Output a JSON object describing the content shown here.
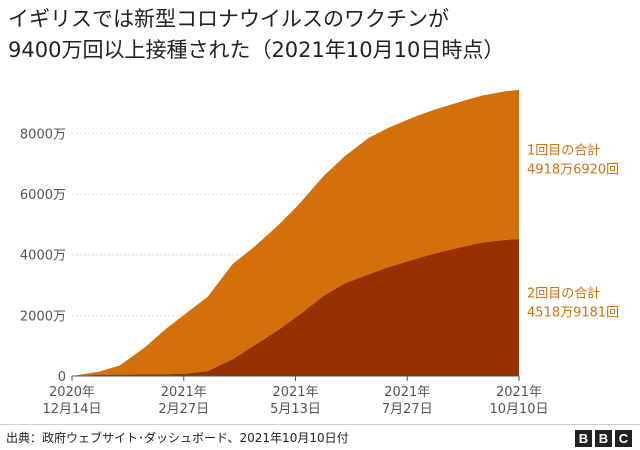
{
  "title_line1": "イギリスでは新型コロナウイルスのワクチンが",
  "title_line2": "9400万回以上接種された（2021年10月10日時点）",
  "source": "出典：政府ウェブサイト･ダッシュボード、2021年10月10日付",
  "logo": [
    "B",
    "B",
    "C"
  ],
  "colors": {
    "first_dose": "#d4700b",
    "second_dose": "#993000",
    "first_label": "#d4700b",
    "second_label": "#d4700b"
  },
  "chart_data": {
    "type": "area",
    "stacked": true,
    "xlabel": "",
    "ylabel": "",
    "x_ticks": [
      {
        "line1": "2020年",
        "line2": "12月14日",
        "date": "2020-12-14"
      },
      {
        "line1": "2021年",
        "line2": "2月27日",
        "date": "2021-02-27"
      },
      {
        "line1": "2021年",
        "line2": "5月13日",
        "date": "2021-05-13"
      },
      {
        "line1": "2021年",
        "line2": "7月27日",
        "date": "2021-07-27"
      },
      {
        "line1": "2021年",
        "line2": "10月10日",
        "date": "2021-10-10"
      }
    ],
    "y_ticks": [
      {
        "value": 0,
        "label": "0"
      },
      {
        "value": 20000000,
        "label": "2000万"
      },
      {
        "value": 40000000,
        "label": "4000万"
      },
      {
        "value": 60000000,
        "label": "6000万"
      },
      {
        "value": 80000000,
        "label": "8000万"
      }
    ],
    "ylim": [
      0,
      95000000
    ],
    "xlim": [
      "2020-12-14",
      "2021-10-10"
    ],
    "grid": true,
    "x": [
      "2020-12-14",
      "2021-01-01",
      "2021-01-15",
      "2021-02-01",
      "2021-02-15",
      "2021-03-01",
      "2021-03-15",
      "2021-04-01",
      "2021-04-15",
      "2021-05-01",
      "2021-05-15",
      "2021-06-01",
      "2021-06-15",
      "2021-07-01",
      "2021-07-15",
      "2021-08-01",
      "2021-08-15",
      "2021-09-01",
      "2021-09-15",
      "2021-10-01",
      "2021-10-10"
    ],
    "series": [
      {
        "key": "second_dose",
        "label_line1": "2回目の合計",
        "label_line2": "4518万9181回",
        "values": [
          0,
          400000,
          450000,
          500000,
          550000,
          800000,
          1600000,
          5500000,
          10000000,
          15000000,
          20000000,
          26500000,
          30500000,
          33500000,
          36000000,
          38500000,
          40500000,
          42500000,
          44000000,
          44900000,
          45189181
        ]
      },
      {
        "key": "first_dose",
        "label_line1": "1回目の合計",
        "label_line2": "4918万6920回",
        "values": [
          0,
          1000000,
          3000000,
          9000000,
          15000000,
          20000000,
          24500000,
          31500000,
          32500000,
          34500000,
          36500000,
          39500000,
          42000000,
          45000000,
          46000000,
          47000000,
          47500000,
          48000000,
          48500000,
          49000000,
          49186920
        ]
      }
    ]
  }
}
